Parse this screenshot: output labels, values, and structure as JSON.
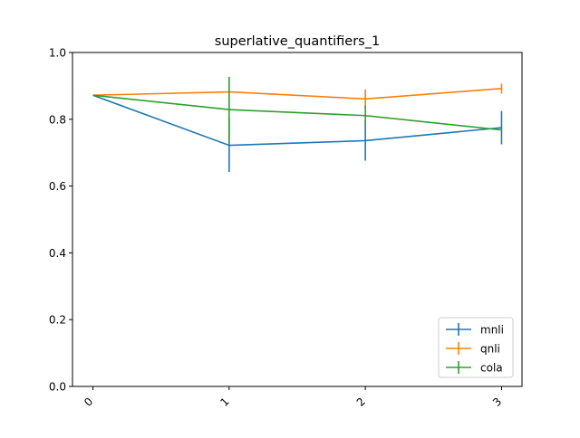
{
  "chart_data": {
    "type": "line",
    "title": "superlative_quantifiers_1",
    "xlabel": "",
    "ylabel": "",
    "x": [
      0,
      1,
      2,
      3
    ],
    "xticks": [
      "0",
      "1",
      "2",
      "3"
    ],
    "yticks": [
      "0.0",
      "0.2",
      "0.4",
      "0.6",
      "0.8",
      "1.0"
    ],
    "xlim": [
      -0.15,
      3.15
    ],
    "ylim": [
      0.0,
      1.0
    ],
    "grid": false,
    "legend_position": "bottom-right",
    "series": [
      {
        "name": "mnli",
        "color": "#1f77b4",
        "values": [
          0.872,
          0.722,
          0.736,
          0.775
        ],
        "errors": [
          0.0,
          0.08,
          0.06,
          0.05
        ]
      },
      {
        "name": "qnli",
        "color": "#ff7f0e",
        "values": [
          0.872,
          0.882,
          0.861,
          0.892
        ],
        "errors": [
          0.0,
          0.0,
          0.028,
          0.015
        ]
      },
      {
        "name": "cola",
        "color": "#2ca02c",
        "values": [
          0.872,
          0.829,
          0.811,
          0.768
        ],
        "errors": [
          0.0,
          0.098,
          0.03,
          0.0
        ]
      }
    ]
  }
}
